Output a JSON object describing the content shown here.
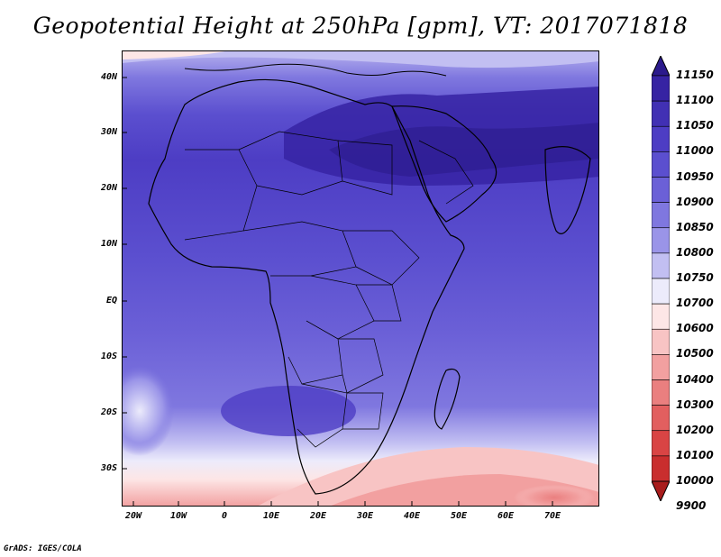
{
  "title": "Geopotential Height at 250hPa [gpm], VT: 2017071818",
  "credit": "GrADS: IGES/COLA",
  "map": {
    "lat_labels": [
      "40N",
      "30N",
      "20N",
      "10N",
      "EQ",
      "10S",
      "20S",
      "30S"
    ],
    "lon_labels": [
      "20W",
      "10W",
      "0",
      "10E",
      "20E",
      "30E",
      "40E",
      "50E",
      "60E",
      "70E"
    ]
  },
  "colorbar": {
    "labels": [
      "11150",
      "11100",
      "11050",
      "11000",
      "10950",
      "10900",
      "10850",
      "10800",
      "10750",
      "10700",
      "10600",
      "10500",
      "10400",
      "10300",
      "10200",
      "10100",
      "10000",
      "9900"
    ],
    "colors": [
      "#2b1a8c",
      "#3623a3",
      "#4130b4",
      "#4d3dc4",
      "#5b4fcf",
      "#6b60d7",
      "#7f77df",
      "#9a94e8",
      "#c2bff2",
      "#ecebfb",
      "#fde6e6",
      "#f8c4c4",
      "#f2a0a0",
      "#ea7f7f",
      "#e25f5f",
      "#d94444",
      "#c92e2e",
      "#a81c1c"
    ]
  }
}
